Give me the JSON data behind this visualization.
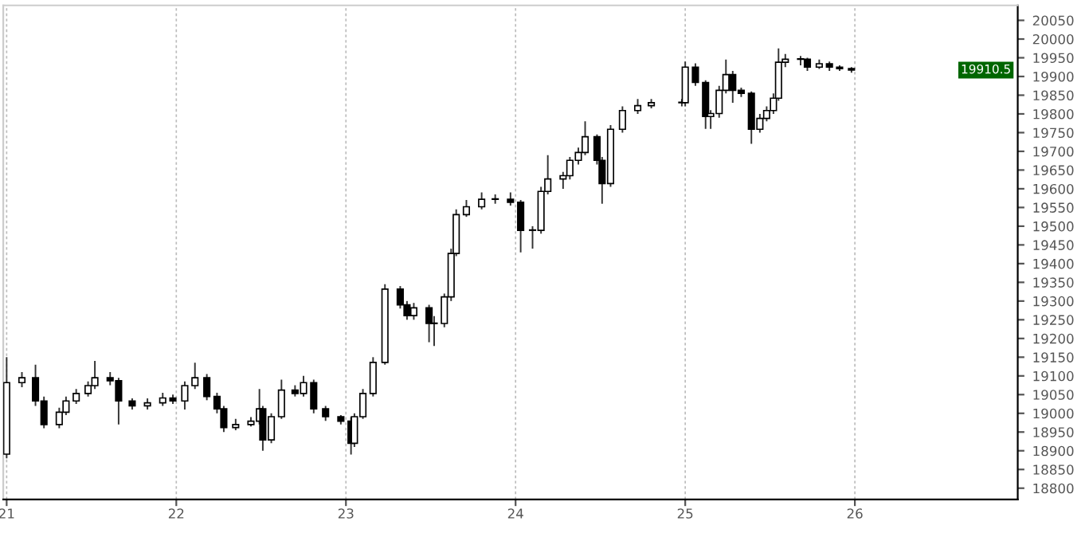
{
  "chart_data": {
    "type": "candlestick",
    "x": [
      21.0,
      21.09,
      21.17,
      21.22,
      21.31,
      21.35,
      21.41,
      21.48,
      21.52,
      21.61,
      21.66,
      21.74,
      21.83,
      21.92,
      21.98,
      22.05,
      22.11,
      22.18,
      22.24,
      22.28,
      22.35,
      22.44,
      22.49,
      22.51,
      22.56,
      22.62,
      22.7,
      22.75,
      22.81,
      22.88,
      22.97,
      23.03,
      23.05,
      23.1,
      23.16,
      23.23,
      23.32,
      23.36,
      23.4,
      23.49,
      23.52,
      23.58,
      23.62,
      23.65,
      23.71,
      23.8,
      23.88,
      23.97,
      24.03,
      24.1,
      24.15,
      24.19,
      24.28,
      24.32,
      24.37,
      24.41,
      24.48,
      24.51,
      24.56,
      24.63,
      24.72,
      24.8,
      24.98,
      25.0,
      25.06,
      25.12,
      25.15,
      25.2,
      25.24,
      25.28,
      25.33,
      25.39,
      25.44,
      25.48,
      25.52,
      25.55,
      25.59,
      25.68,
      25.72,
      25.79,
      25.85,
      25.91,
      25.98
    ],
    "ohlc": [
      [
        18891,
        19150,
        18880,
        19082
      ],
      [
        19082,
        19110,
        19070,
        19095
      ],
      [
        19095,
        19130,
        19020,
        19033
      ],
      [
        19033,
        19045,
        18960,
        18970
      ],
      [
        18970,
        19015,
        18960,
        19003
      ],
      [
        19003,
        19045,
        18995,
        19033
      ],
      [
        19033,
        19065,
        19025,
        19053
      ],
      [
        19053,
        19085,
        19045,
        19074
      ],
      [
        19074,
        19140,
        19065,
        19095
      ],
      [
        19095,
        19110,
        19075,
        19087
      ],
      [
        19087,
        19095,
        18970,
        19033
      ],
      [
        19033,
        19040,
        19010,
        19020
      ],
      [
        19020,
        19040,
        19010,
        19028
      ],
      [
        19028,
        19055,
        19020,
        19041
      ],
      [
        19041,
        19050,
        19025,
        19033
      ],
      [
        19033,
        19085,
        19010,
        19074
      ],
      [
        19074,
        19135,
        19065,
        19095
      ],
      [
        19095,
        19105,
        19035,
        19045
      ],
      [
        19045,
        19055,
        19000,
        19012
      ],
      [
        19012,
        19020,
        18950,
        18962
      ],
      [
        18962,
        18985,
        18955,
        18970
      ],
      [
        18970,
        18990,
        18965,
        18979
      ],
      [
        18979,
        19065,
        18970,
        19012
      ],
      [
        19012,
        19020,
        18900,
        18929
      ],
      [
        18929,
        19000,
        18920,
        18991
      ],
      [
        18991,
        19090,
        18985,
        19062
      ],
      [
        19062,
        19075,
        19045,
        19053
      ],
      [
        19053,
        19100,
        19045,
        19082
      ],
      [
        19082,
        19090,
        19000,
        19012
      ],
      [
        19012,
        19020,
        18980,
        18991
      ],
      [
        18991,
        18995,
        18970,
        18979
      ],
      [
        18979,
        18990,
        18890,
        18920
      ],
      [
        18920,
        19000,
        18910,
        18991
      ],
      [
        18991,
        19065,
        18985,
        19053
      ],
      [
        19053,
        19150,
        19045,
        19136
      ],
      [
        19136,
        19345,
        19130,
        19332
      ],
      [
        19332,
        19340,
        19280,
        19290
      ],
      [
        19290,
        19300,
        19250,
        19261
      ],
      [
        19261,
        19295,
        19250,
        19282
      ],
      [
        19282,
        19290,
        19190,
        19240
      ],
      [
        19240,
        19260,
        19180,
        19240
      ],
      [
        19240,
        19320,
        19230,
        19311
      ],
      [
        19311,
        19440,
        19300,
        19427
      ],
      [
        19427,
        19545,
        19420,
        19531
      ],
      [
        19531,
        19570,
        19525,
        19552
      ],
      [
        19552,
        19590,
        19545,
        19572
      ],
      [
        19572,
        19585,
        19560,
        19572
      ],
      [
        19572,
        19590,
        19555,
        19564
      ],
      [
        19564,
        19570,
        19430,
        19489
      ],
      [
        19489,
        19500,
        19440,
        19489
      ],
      [
        19489,
        19605,
        19480,
        19593
      ],
      [
        19593,
        19690,
        19585,
        19626
      ],
      [
        19626,
        19645,
        19600,
        19635
      ],
      [
        19635,
        19685,
        19625,
        19676
      ],
      [
        19676,
        19710,
        19665,
        19697
      ],
      [
        19697,
        19780,
        19690,
        19739
      ],
      [
        19739,
        19745,
        19665,
        19676
      ],
      [
        19676,
        19685,
        19560,
        19614
      ],
      [
        19614,
        19770,
        19605,
        19759
      ],
      [
        19759,
        19820,
        19750,
        19809
      ],
      [
        19809,
        19840,
        19800,
        19822
      ],
      [
        19822,
        19840,
        19815,
        19830
      ],
      [
        19830,
        19840,
        19820,
        19830
      ],
      [
        19830,
        19940,
        19820,
        19925
      ],
      [
        19925,
        19935,
        19875,
        19884
      ],
      [
        19884,
        19890,
        19760,
        19793
      ],
      [
        19793,
        19810,
        19760,
        19801
      ],
      [
        19801,
        19875,
        19790,
        19863
      ],
      [
        19863,
        19945,
        19855,
        19905
      ],
      [
        19905,
        19915,
        19830,
        19863
      ],
      [
        19863,
        19870,
        19845,
        19855
      ],
      [
        19855,
        19860,
        19720,
        19759
      ],
      [
        19759,
        19800,
        19750,
        19788
      ],
      [
        19788,
        19820,
        19780,
        19809
      ],
      [
        19809,
        19855,
        19800,
        19842
      ],
      [
        19842,
        19975,
        19835,
        19938
      ],
      [
        19938,
        19960,
        19925,
        19946
      ],
      [
        19946,
        19955,
        19930,
        19946
      ],
      [
        19946,
        19950,
        19915,
        19925
      ],
      [
        19925,
        19945,
        19920,
        19934
      ],
      [
        19934,
        19940,
        19915,
        19925
      ],
      [
        19925,
        19930,
        19915,
        19921
      ],
      [
        19921,
        19925,
        19910,
        19917
      ]
    ],
    "xlim": [
      20.98,
      26.96
    ],
    "xticks": [
      21,
      22,
      23,
      24,
      25,
      26
    ],
    "ylim": [
      18770,
      20090
    ],
    "yticks": [
      18800,
      18850,
      18900,
      18950,
      19000,
      19050,
      19100,
      19150,
      19200,
      19250,
      19300,
      19350,
      19400,
      19450,
      19500,
      19550,
      19600,
      19650,
      19700,
      19750,
      19800,
      19850,
      19900,
      19950,
      20000,
      20050
    ],
    "grid": "x",
    "annotations": [
      "19910.5"
    ]
  }
}
